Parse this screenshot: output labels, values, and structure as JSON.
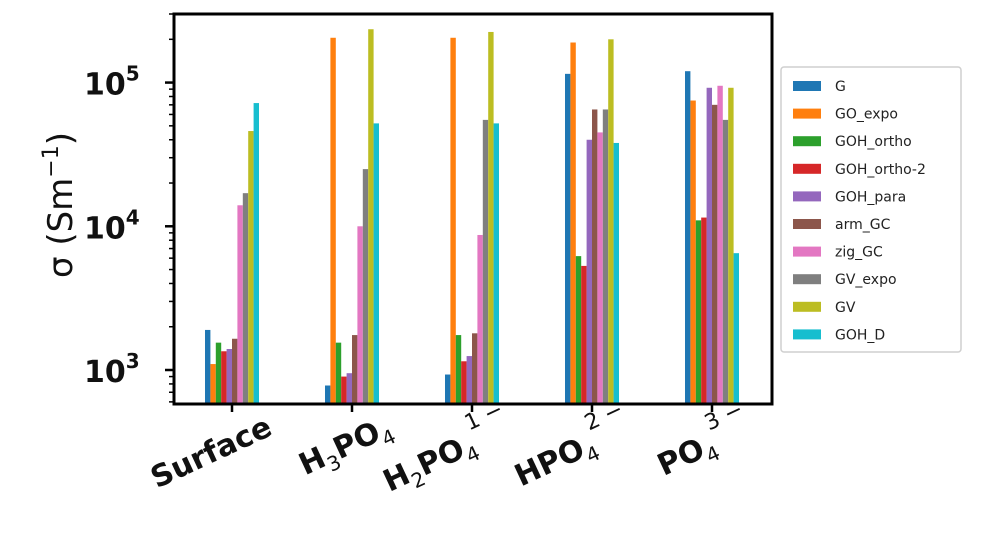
{
  "chart_data": {
    "type": "bar",
    "yscale": "log",
    "ylabel": "σ (Sm⁻¹)",
    "ylabel_parts": {
      "main": "σ (Sm",
      "exp": "−1",
      "close": ")"
    },
    "ylim": [
      580,
      300000
    ],
    "yticks": [
      {
        "value": 1000,
        "base": "10",
        "exp": "3"
      },
      {
        "value": 10000,
        "base": "10",
        "exp": "4"
      },
      {
        "value": 100000,
        "base": "10",
        "exp": "5"
      }
    ],
    "categories": [
      {
        "label": "Surface",
        "base": "Surface",
        "sub": "",
        "mid": "",
        "sup": ""
      },
      {
        "label": "H3PO4",
        "base": "H",
        "sub": "3",
        "mid": "PO",
        "sub2": "4",
        "sup": ""
      },
      {
        "label": "H2PO4 1−",
        "base": "H",
        "sub": "2",
        "mid": "PO",
        "sub2": "4",
        "sup": "1 −"
      },
      {
        "label": "HPO4 2−",
        "base": "HPO",
        "sub": "",
        "mid": "",
        "sub2": "4",
        "sup": "2 −"
      },
      {
        "label": "PO4 3−",
        "base": "PO",
        "sub": "",
        "mid": "",
        "sub2": "4",
        "sup": "3 −"
      }
    ],
    "series": [
      {
        "name": "G",
        "color": "#1f77b4",
        "values": [
          1900,
          780,
          930,
          115000,
          120000
        ]
      },
      {
        "name": "GO_expo",
        "color": "#ff7f0e",
        "values": [
          1100,
          205000,
          205000,
          190000,
          75000
        ]
      },
      {
        "name": "GOH_ortho",
        "color": "#2ca02c",
        "values": [
          1550,
          1550,
          1750,
          6200,
          11000
        ]
      },
      {
        "name": "GOH_ortho-2",
        "color": "#d62728",
        "values": [
          1350,
          900,
          1150,
          5300,
          11500
        ]
      },
      {
        "name": "GOH_para",
        "color": "#9467bd",
        "values": [
          1400,
          950,
          1250,
          40000,
          92000
        ]
      },
      {
        "name": "arm_GC",
        "color": "#8c564b",
        "values": [
          1650,
          1750,
          1800,
          65000,
          70000
        ]
      },
      {
        "name": "zig_GC",
        "color": "#e377c2",
        "values": [
          14000,
          10000,
          8700,
          45000,
          95000
        ]
      },
      {
        "name": "GV_expo",
        "color": "#7f7f7f",
        "values": [
          17000,
          25000,
          55000,
          65000,
          55000
        ]
      },
      {
        "name": "GV",
        "color": "#bcbd22",
        "values": [
          46000,
          235000,
          225000,
          200000,
          92000
        ]
      },
      {
        "name": "GOH_D",
        "color": "#17becf",
        "values": [
          72000,
          52000,
          52000,
          38000,
          6500
        ]
      }
    ],
    "legend": {
      "position": "outside-right"
    },
    "grid": false
  }
}
